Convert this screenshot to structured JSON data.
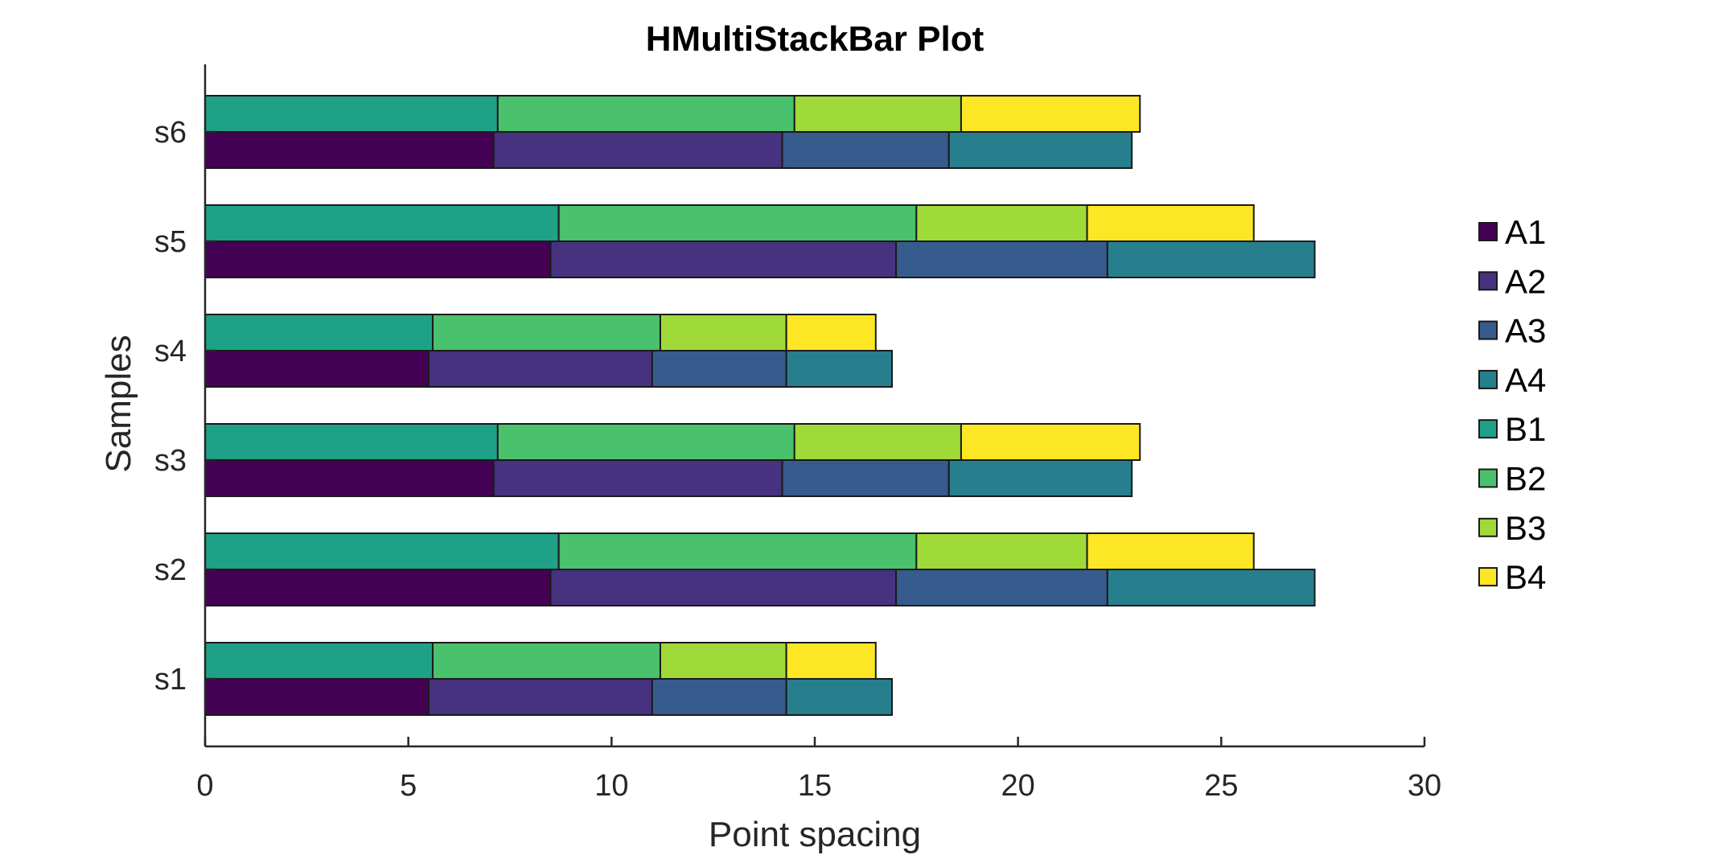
{
  "chart_data": {
    "type": "bar",
    "orientation": "horizontal",
    "stacked": true,
    "title": "HMultiStackBar Plot",
    "xlabel": "Point spacing",
    "ylabel": "Samples",
    "xlim": [
      0,
      30
    ],
    "xticks": [
      0,
      5,
      10,
      15,
      20,
      25,
      30
    ],
    "categories": [
      "s1",
      "s2",
      "s3",
      "s4",
      "s5",
      "s6"
    ],
    "groups": [
      {
        "position": "lower",
        "series": [
          {
            "name": "A1",
            "color": "#440154",
            "values": [
              5.5,
              8.5,
              7.1,
              5.5,
              8.5,
              7.1
            ]
          },
          {
            "name": "A2",
            "color": "#46327e",
            "values": [
              5.5,
              8.5,
              7.1,
              5.5,
              8.5,
              7.1
            ]
          },
          {
            "name": "A3",
            "color": "#365c8d",
            "values": [
              3.3,
              5.2,
              4.1,
              3.3,
              5.2,
              4.1
            ]
          },
          {
            "name": "A4",
            "color": "#277f8e",
            "values": [
              2.6,
              5.1,
              4.5,
              2.6,
              5.1,
              4.5
            ]
          }
        ]
      },
      {
        "position": "upper",
        "series": [
          {
            "name": "B1",
            "color": "#1fa187",
            "values": [
              5.6,
              8.7,
              7.2,
              5.6,
              8.7,
              7.2
            ]
          },
          {
            "name": "B2",
            "color": "#4ac16d",
            "values": [
              5.6,
              8.8,
              7.3,
              5.6,
              8.8,
              7.3
            ]
          },
          {
            "name": "B3",
            "color": "#a0da39",
            "values": [
              3.1,
              4.2,
              4.1,
              3.1,
              4.2,
              4.1
            ]
          },
          {
            "name": "B4",
            "color": "#fde725",
            "values": [
              2.2,
              4.1,
              4.4,
              2.2,
              4.1,
              4.4
            ]
          }
        ]
      }
    ],
    "legend": {
      "placement": "right",
      "entries": [
        "A1",
        "A2",
        "A3",
        "A4",
        "B1",
        "B2",
        "B3",
        "B4"
      ]
    },
    "grid": false
  }
}
